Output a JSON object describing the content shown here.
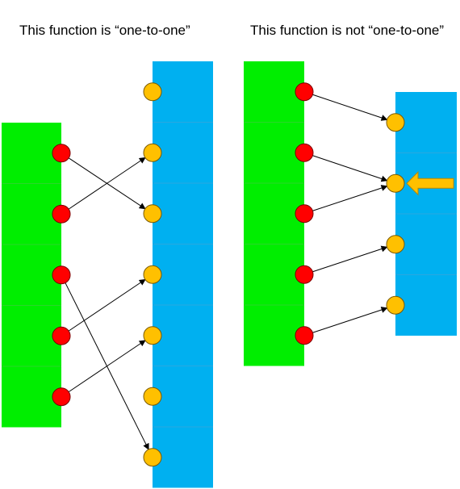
{
  "titles": {
    "left": "This function is “one-to-one”",
    "right": "This function is not “one-to-one”"
  },
  "colors": {
    "domain": "#00ee00",
    "codomain": "#00b0f0",
    "domain_point": "#ff0000",
    "codomain_point": "#ffc000",
    "arrow": "#000000",
    "highlight_arrow": "#ffc000"
  },
  "left_diagram": {
    "domain_count": 5,
    "codomain_count": 7,
    "mapping": [
      2,
      1,
      6,
      3,
      4
    ]
  },
  "right_diagram": {
    "domain_count": 5,
    "codomain_count": 4,
    "mapping": [
      0,
      1,
      1,
      2,
      3
    ],
    "highlighted_codomain": 1
  }
}
